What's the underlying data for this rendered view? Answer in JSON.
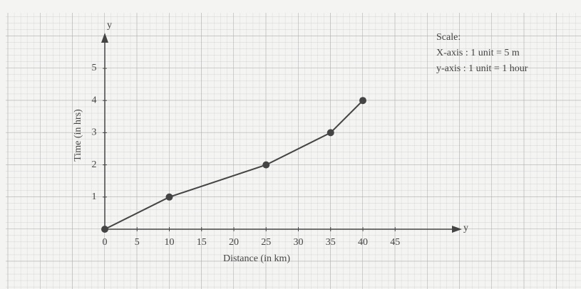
{
  "chart_data": {
    "type": "line",
    "x_label": "Distance (in km)",
    "y_label": "Time (in hrs)",
    "x_axis_end_label": "y",
    "y_axis_end_label": "y",
    "annotations": [
      "Scale:",
      "X-axis : 1 unit = 5 m",
      "y-axis : 1 unit = 1 hour"
    ],
    "x": [
      0,
      10,
      25,
      35,
      40
    ],
    "series": [
      {
        "color": "#444444",
        "values": [
          0,
          1,
          2,
          3,
          4
        ]
      }
    ],
    "xlim": [
      0,
      54
    ],
    "ylim": [
      0,
      6
    ],
    "xticks": [
      0,
      5,
      10,
      15,
      20,
      25,
      30,
      35,
      40,
      45
    ],
    "yticks": [
      1,
      2,
      3,
      4,
      5
    ]
  }
}
